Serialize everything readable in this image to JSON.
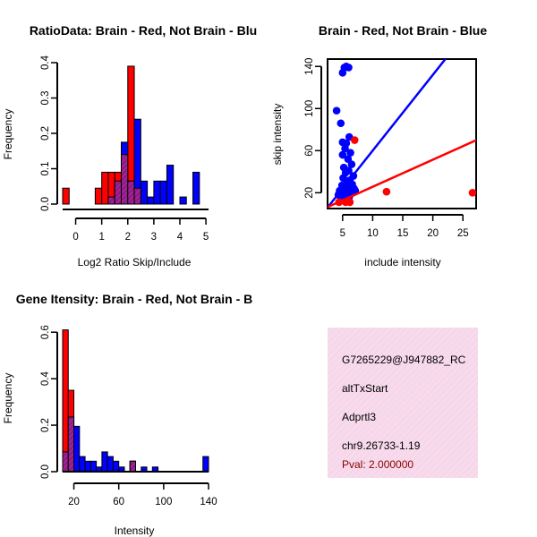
{
  "colors": {
    "red": "#ff0000",
    "blue": "#0000ff",
    "purple": "#8b1a8b",
    "hatch": "#c8308c",
    "info_bg": "#f7dbec",
    "pval": "#8b0000"
  },
  "chart_data": [
    {
      "type": "bar",
      "title": "RatioData: Brain - Red, Not Brain - Blu",
      "xlabel": "Log2 Ratio Skip/Include",
      "ylabel": "Frequency",
      "xlim": [
        -0.5,
        5.1
      ],
      "ylim": [
        0,
        0.4
      ],
      "xticks": [
        0,
        1,
        2,
        3,
        4,
        5
      ],
      "yticks": [
        0.0,
        0.1,
        0.2,
        0.3,
        0.4
      ],
      "bin_width": 0.25,
      "series": [
        {
          "name": "Brain",
          "color": "red",
          "bins": [
            {
              "x0": -0.5,
              "value": 0.045
            },
            {
              "x0": 0.75,
              "value": 0.045
            },
            {
              "x0": 1.0,
              "value": 0.09
            },
            {
              "x0": 1.25,
              "value": 0.09
            },
            {
              "x0": 1.5,
              "value": 0.09
            },
            {
              "x0": 1.75,
              "value": 0.14
            },
            {
              "x0": 2.0,
              "value": 0.39
            },
            {
              "x0": 2.25,
              "value": 0.045
            }
          ]
        },
        {
          "name": "Not Brain",
          "color": "blue",
          "bins": [
            {
              "x0": 1.25,
              "value": 0.02
            },
            {
              "x0": 1.5,
              "value": 0.065
            },
            {
              "x0": 1.75,
              "value": 0.175
            },
            {
              "x0": 2.0,
              "value": 0.065
            },
            {
              "x0": 2.25,
              "value": 0.24
            },
            {
              "x0": 2.5,
              "value": 0.065
            },
            {
              "x0": 2.75,
              "value": 0.02
            },
            {
              "x0": 3.0,
              "value": 0.065
            },
            {
              "x0": 3.25,
              "value": 0.065
            },
            {
              "x0": 3.5,
              "value": 0.11
            },
            {
              "x0": 4.0,
              "value": 0.02
            },
            {
              "x0": 4.5,
              "value": 0.09
            }
          ]
        }
      ]
    },
    {
      "type": "scatter",
      "title": "Brain - Red, Not Brain - Blue",
      "xlabel": "include intensity",
      "ylabel": "skip intensity",
      "xlim": [
        2.5,
        27.2
      ],
      "ylim": [
        5,
        147
      ],
      "xticks": [
        5,
        10,
        15,
        20,
        25
      ],
      "yticks": [
        20,
        60,
        100,
        140
      ],
      "series": [
        {
          "name": "Not Brain",
          "color": "blue",
          "points": [
            [
              5.0,
              134
            ],
            [
              5.3,
              139
            ],
            [
              5.6,
              140
            ],
            [
              6.0,
              139
            ],
            [
              4.7,
              86
            ],
            [
              4.0,
              98
            ],
            [
              5.0,
              68
            ],
            [
              5.6,
              67
            ],
            [
              6.1,
              73
            ],
            [
              5.4,
              62
            ],
            [
              6.3,
              58
            ],
            [
              5.0,
              56
            ],
            [
              5.9,
              52
            ],
            [
              6.5,
              47
            ],
            [
              5.2,
              44
            ],
            [
              6.0,
              41
            ],
            [
              5.5,
              39
            ],
            [
              6.8,
              36
            ],
            [
              5.1,
              34
            ],
            [
              6.2,
              32
            ],
            [
              5.8,
              30
            ],
            [
              6.6,
              28
            ],
            [
              4.9,
              27
            ],
            [
              6.4,
              26
            ],
            [
              5.3,
              25
            ],
            [
              6.9,
              24
            ],
            [
              4.5,
              22
            ],
            [
              5.7,
              21
            ],
            [
              6.7,
              20
            ],
            [
              5.0,
              19
            ],
            [
              4.3,
              18
            ],
            [
              5.5,
              17
            ],
            [
              6.1,
              16
            ],
            [
              7.1,
              22
            ],
            [
              4.8,
              15
            ]
          ]
        },
        {
          "name": "Brain",
          "color": "red",
          "points": [
            [
              7.0,
              70
            ],
            [
              12.3,
              21
            ],
            [
              26.6,
              20
            ],
            [
              5.5,
              11
            ],
            [
              6.2,
              11
            ],
            [
              4.4,
              11
            ]
          ]
        }
      ],
      "fit_lines": [
        {
          "color": "blue",
          "intercept": -12,
          "slope": 7.2
        },
        {
          "color": "red",
          "intercept": 0,
          "slope": 2.57
        }
      ]
    },
    {
      "type": "bar",
      "title": "Gene Itensity: Brain - Red, Not Brain - B",
      "xlabel": "Intensity",
      "ylabel": "Frequency",
      "xlim": [
        10,
        140
      ],
      "ylim": [
        0,
        0.62
      ],
      "xticks": [
        20,
        60,
        100,
        140
      ],
      "yticks": [
        0.0,
        0.2,
        0.4,
        0.6
      ],
      "bin_width": 5,
      "series": [
        {
          "name": "Brain",
          "color": "red",
          "bins": [
            {
              "x0": 10,
              "value": 0.61
            },
            {
              "x0": 15,
              "value": 0.35
            },
            {
              "x0": 70,
              "value": 0.045
            }
          ]
        },
        {
          "name": "Not Brain",
          "color": "blue",
          "bins": [
            {
              "x0": 10,
              "value": 0.085
            },
            {
              "x0": 15,
              "value": 0.235
            },
            {
              "x0": 20,
              "value": 0.195
            },
            {
              "x0": 25,
              "value": 0.065
            },
            {
              "x0": 30,
              "value": 0.045
            },
            {
              "x0": 35,
              "value": 0.045
            },
            {
              "x0": 40,
              "value": 0.02
            },
            {
              "x0": 45,
              "value": 0.085
            },
            {
              "x0": 50,
              "value": 0.065
            },
            {
              "x0": 55,
              "value": 0.045
            },
            {
              "x0": 60,
              "value": 0.02
            },
            {
              "x0": 70,
              "value": 0.045
            },
            {
              "x0": 80,
              "value": 0.02
            },
            {
              "x0": 90,
              "value": 0.02
            },
            {
              "x0": 135,
              "value": 0.065
            }
          ]
        }
      ]
    }
  ],
  "info_box": {
    "probe_id": "G7265229@J947882_RC",
    "event_type": "altTxStart",
    "gene": "Adprtl3",
    "location": "chr9.26733-1.19",
    "pval": "Pval: 2.000000"
  }
}
